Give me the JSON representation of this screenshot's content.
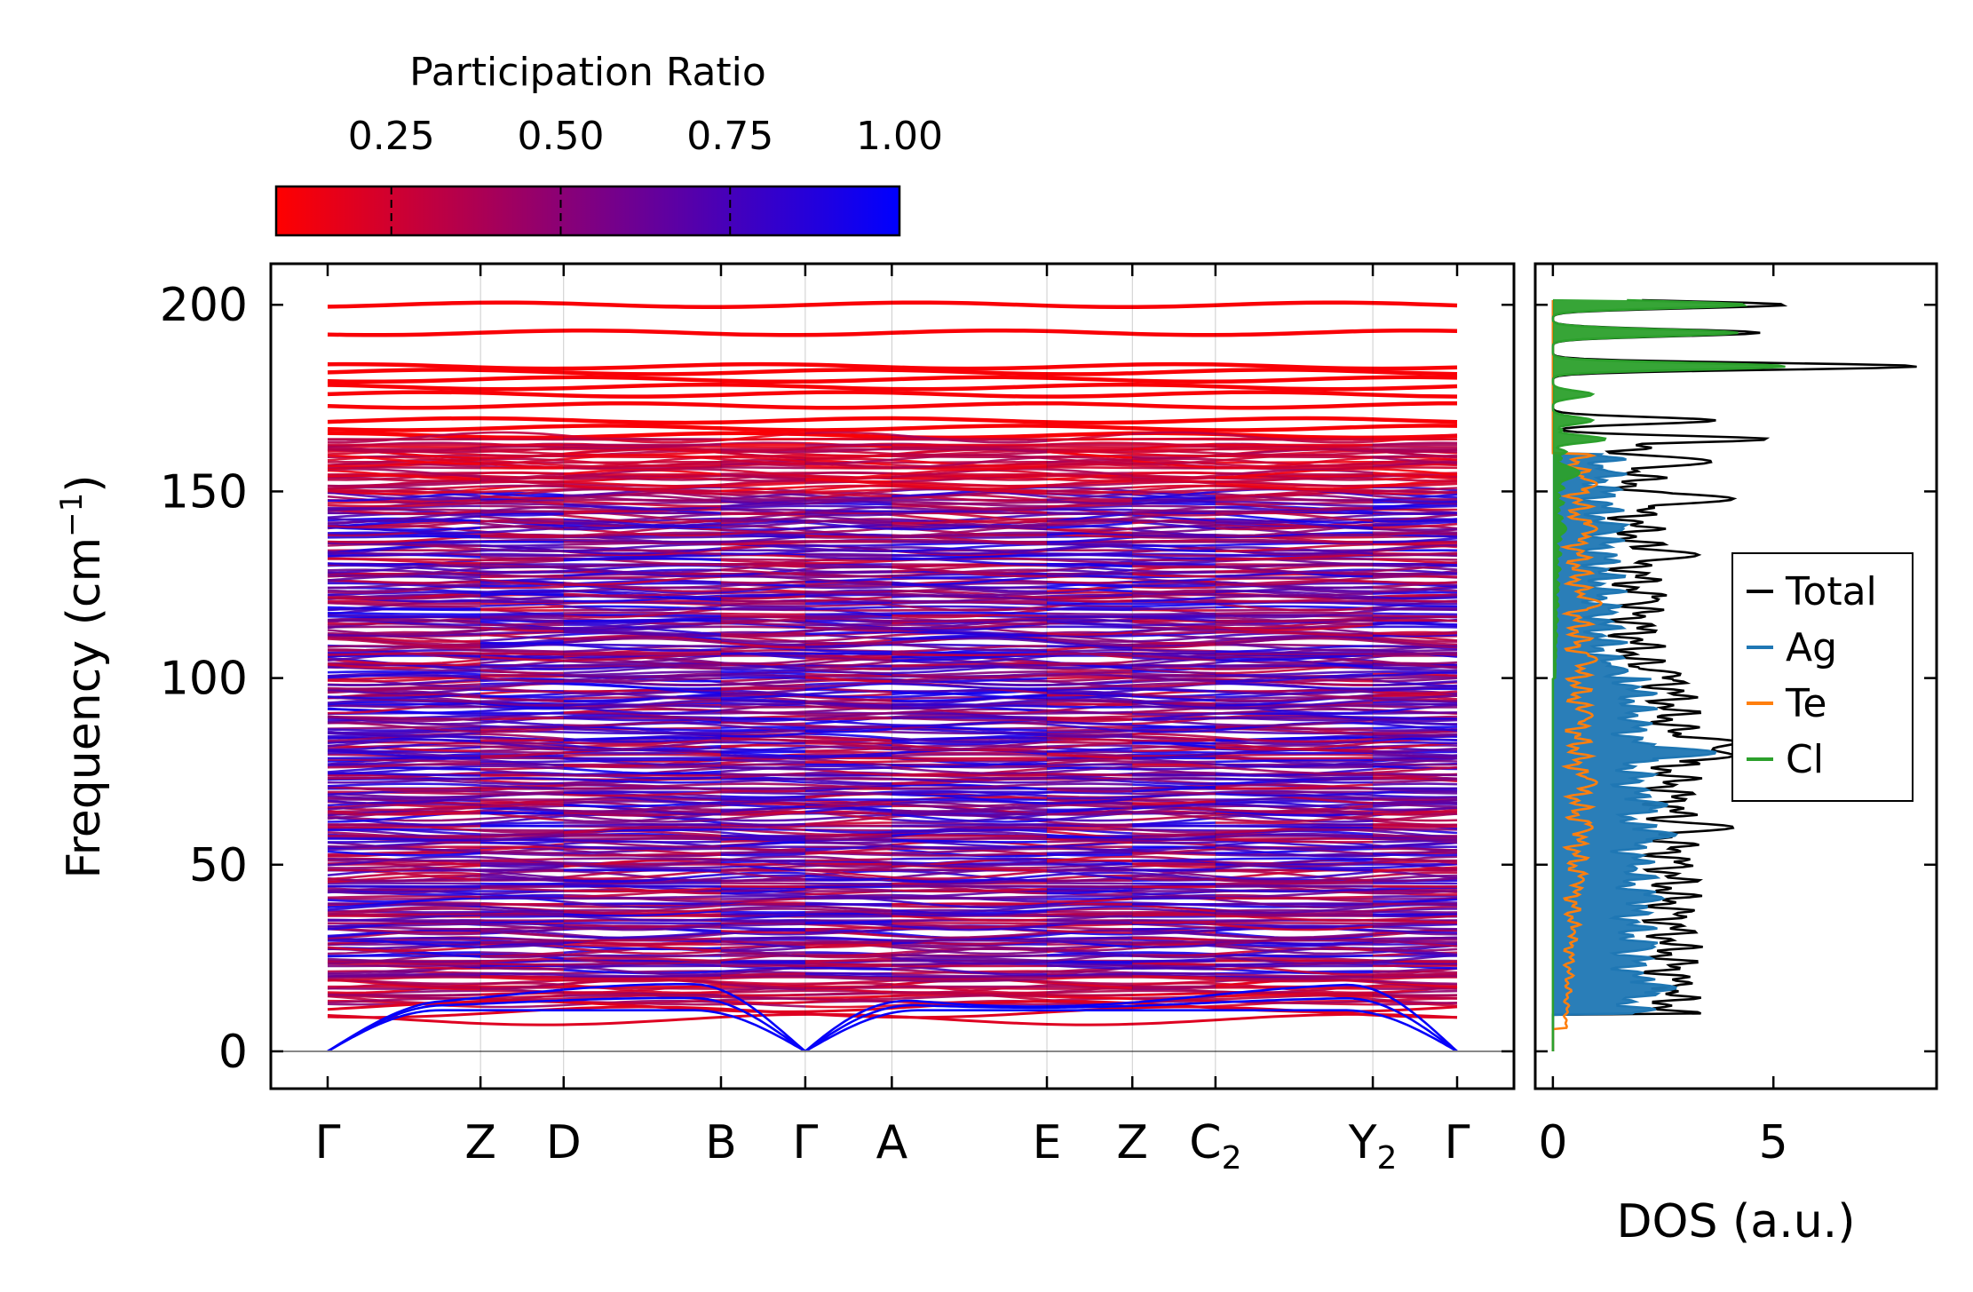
{
  "chart_data": [
    {
      "type": "line",
      "name": "phonon_band_structure",
      "ylabel": "Frequency (cm",
      "ylabel_sup": "−1",
      "ylabel_tail": ")",
      "ylim": [
        -10,
        211
      ],
      "yticks": [
        0,
        50,
        100,
        150,
        200
      ],
      "ytick_labels": [
        "0",
        "50",
        "100",
        "150",
        "200"
      ],
      "high_symmetry_points": [
        {
          "label": "Γ",
          "sub": "",
          "x": 0.0
        },
        {
          "label": "Z",
          "sub": "",
          "x": 1.36
        },
        {
          "label": "D",
          "sub": "",
          "x": 2.1
        },
        {
          "label": "B",
          "sub": "",
          "x": 3.5
        },
        {
          "label": "Γ",
          "sub": "",
          "x": 4.25
        },
        {
          "label": "A",
          "sub": "",
          "x": 5.02
        },
        {
          "label": "E",
          "sub": "",
          "x": 6.4
        },
        {
          "label": "Z",
          "sub": "",
          "x": 7.16
        },
        {
          "label": "C",
          "sub": "2",
          "x": 7.9
        },
        {
          "label": "Y",
          "sub": "2",
          "x": 9.3
        },
        {
          "label": "Γ",
          "sub": "",
          "x": 10.05
        }
      ],
      "flat_red_bands_y": [
        200,
        192.5,
        183.5,
        182,
        180,
        178,
        176,
        173,
        169,
        167,
        165
      ],
      "acoustic_branches_at_zone_edge": [
        11,
        13,
        15
      ],
      "colormap": {
        "title": "Participation Ratio",
        "range": [
          0.08,
          1.0
        ],
        "ticks": [
          0.25,
          0.5,
          0.75,
          1.0
        ],
        "tick_labels": [
          "0.25",
          "0.50",
          "0.75",
          "1.00"
        ],
        "low_color": "#ff0000",
        "high_color": "#0000ff"
      }
    },
    {
      "type": "line",
      "name": "density_of_states",
      "xlabel": "DOS (a.u.)",
      "xlim": [
        -0.4,
        8.7
      ],
      "xticks": [
        0,
        5
      ],
      "xtick_labels": [
        "0",
        "5"
      ],
      "ylim": [
        -10,
        211
      ],
      "series": [
        {
          "name": "Total",
          "color": "#000000",
          "peaks": [
            [
              200,
              5.3
            ],
            [
              192.5,
              4.7
            ],
            [
              183.5,
              8.3
            ],
            [
              169,
              3.7
            ],
            [
              164,
              4.9
            ],
            [
              158,
              3.6
            ],
            [
              148,
              4.1
            ],
            [
              133,
              3.3
            ],
            [
              121,
              2.4
            ],
            [
              101,
              2.9
            ],
            [
              83,
              4.0
            ],
            [
              79,
              3.9
            ],
            [
              60,
              4.1
            ],
            [
              50,
              3.0
            ],
            [
              37,
              2.8
            ],
            [
              18,
              2.9
            ]
          ]
        },
        {
          "name": "Ag",
          "color": "#1f77b4",
          "peaks": [
            [
              155,
              1.3
            ],
            [
              140,
              1.6
            ],
            [
              118,
              1.3
            ],
            [
              102,
              1.7
            ],
            [
              88,
              1.9
            ],
            [
              80,
              3.7
            ],
            [
              66,
              2.6
            ],
            [
              58,
              2.8
            ],
            [
              49,
              1.9
            ],
            [
              41,
              2.5
            ],
            [
              28,
              2.3
            ],
            [
              17,
              2.8
            ]
          ]
        },
        {
          "name": "Te",
          "color": "#ff7f0e",
          "peaks": [
            [
              152,
              1.0
            ],
            [
              140,
              1.0
            ],
            [
              120,
              1.1
            ],
            [
              105,
              1.0
            ],
            [
              90,
              0.9
            ],
            [
              72,
              1.0
            ],
            [
              60,
              0.9
            ],
            [
              46,
              0.7
            ],
            [
              32,
              0.5
            ],
            [
              22,
              0.3
            ]
          ]
        },
        {
          "name": "Cl",
          "color": "#2ca02c",
          "peaks": [
            [
              200,
              4.4
            ],
            [
              192.5,
              4.2
            ],
            [
              183.5,
              5.3
            ],
            [
              176,
              0.9
            ],
            [
              169,
              0.9
            ],
            [
              164,
              1.2
            ],
            [
              155,
              0.6
            ],
            [
              140,
              0.3
            ]
          ]
        }
      ],
      "legend_position": "right"
    }
  ]
}
